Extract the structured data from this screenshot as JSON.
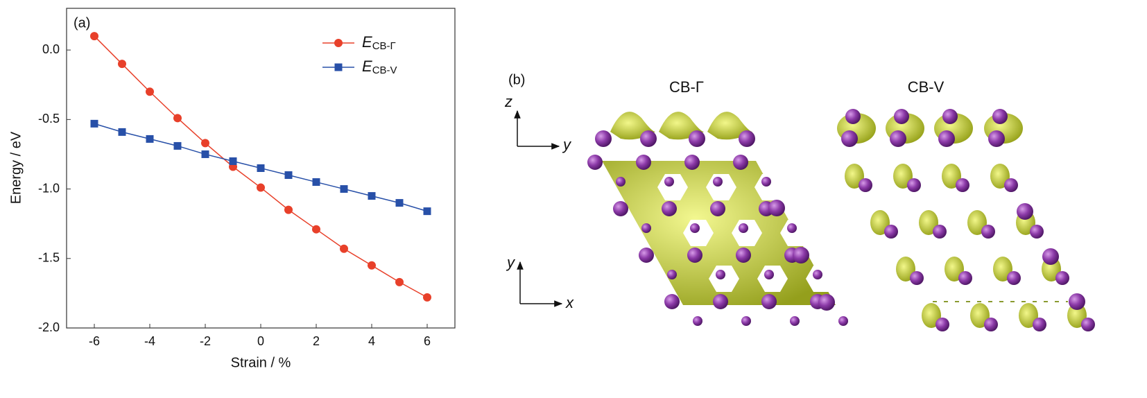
{
  "chart_data": {
    "type": "line",
    "annotation": "(a)",
    "x_label": "Strain / %",
    "y_label": "Energy / eV",
    "x": [
      -6,
      -5,
      -4,
      -3,
      -2,
      -1,
      0,
      1,
      2,
      3,
      4,
      5,
      6
    ],
    "series": [
      {
        "name": "ECB-Γ",
        "color": "#e8402a",
        "marker": "circle",
        "values": [
          0.1,
          -0.1,
          -0.3,
          -0.49,
          -0.67,
          -0.84,
          -0.99,
          -1.15,
          -1.29,
          -1.43,
          -1.55,
          -1.67,
          -1.78
        ]
      },
      {
        "name": "ECB-V",
        "color": "#2850a8",
        "marker": "square",
        "values": [
          -0.53,
          -0.59,
          -0.64,
          -0.69,
          -0.75,
          -0.8,
          -0.85,
          -0.9,
          -0.95,
          -1.0,
          -1.05,
          -1.1,
          -1.16
        ]
      }
    ],
    "xlim": [
      -7,
      7
    ],
    "xticks": [
      -6,
      -4,
      -2,
      0,
      2,
      4,
      6
    ],
    "ylim": [
      -2.0,
      0.3
    ],
    "yticks": [
      {
        "value": 0,
        "label": "0.0"
      },
      -0.5,
      {
        "value": -1,
        "label": "-1.0"
      },
      -1.5,
      {
        "value": -2,
        "label": "-2.0"
      }
    ],
    "legend": "upper right",
    "grid": false
  },
  "panel_b": {
    "label": "(b)",
    "left_title": "CB-Γ",
    "right_title": "CB-V",
    "top_axes": [
      "z",
      "y"
    ],
    "bottom_axes": [
      "y",
      "x"
    ]
  }
}
